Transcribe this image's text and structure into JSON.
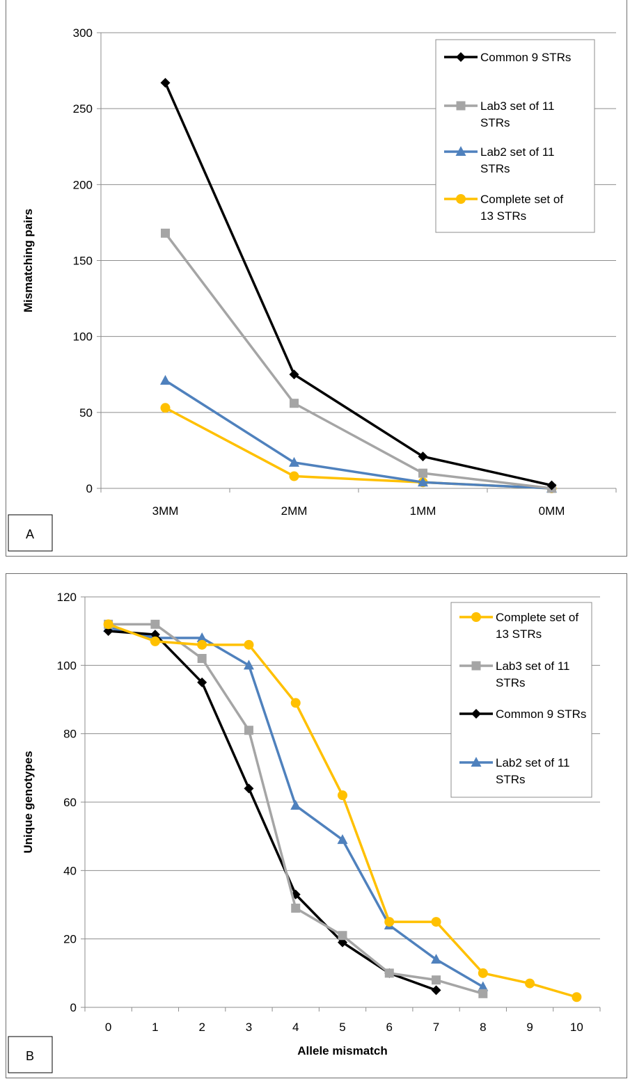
{
  "chart_data": [
    {
      "type": "line",
      "panel_label": "A",
      "title": "",
      "xlabel": "",
      "ylabel": "Mismatching pairs",
      "categories": [
        "3MM",
        "2MM",
        "1MM",
        "0MM"
      ],
      "ylim": [
        0,
        300
      ],
      "yticks": [
        0,
        50,
        100,
        150,
        200,
        250,
        300
      ],
      "grid": true,
      "legend_position": "top-right",
      "series": [
        {
          "name": "Common 9 STRs",
          "color": "#000000",
          "marker": "diamond",
          "values": [
            267,
            75,
            21,
            2
          ]
        },
        {
          "name": "Lab3 set of 11 STRs",
          "color": "#a5a5a5",
          "marker": "square",
          "values": [
            168,
            56,
            10,
            0
          ]
        },
        {
          "name": "Lab2 set of 11 STRs",
          "color": "#4f81bd",
          "marker": "triangle",
          "values": [
            71,
            17,
            4,
            0
          ]
        },
        {
          "name": "Complete set of 13 STRs",
          "color": "#ffc000",
          "marker": "circle",
          "values": [
            53,
            8,
            4,
            0
          ]
        }
      ]
    },
    {
      "type": "line",
      "panel_label": "B",
      "title": "",
      "xlabel": "Allele mismatch",
      "ylabel": "Unique genotypes",
      "categories": [
        "0",
        "1",
        "2",
        "3",
        "4",
        "5",
        "6",
        "7",
        "8",
        "9",
        "10"
      ],
      "ylim": [
        0,
        120
      ],
      "yticks": [
        0,
        20,
        40,
        60,
        80,
        100,
        120
      ],
      "grid": true,
      "legend_position": "top-right",
      "series": [
        {
          "name": "Complete set of 13 STRs",
          "color": "#ffc000",
          "marker": "circle",
          "values": [
            112,
            107,
            106,
            106,
            89,
            62,
            25,
            25,
            10,
            7,
            3
          ]
        },
        {
          "name": "Lab3 set of 11 STRs",
          "color": "#a5a5a5",
          "marker": "square",
          "values": [
            112,
            112,
            102,
            81,
            29,
            21,
            10,
            8,
            4,
            null,
            null
          ]
        },
        {
          "name": "Common 9 STRs",
          "color": "#000000",
          "marker": "diamond",
          "values": [
            110,
            109,
            95,
            64,
            33,
            19,
            10,
            5,
            null,
            null,
            null
          ]
        },
        {
          "name": "Lab2 set of 11 STRs",
          "color": "#4f81bd",
          "marker": "triangle",
          "values": [
            111,
            108,
            108,
            100,
            59,
            49,
            24,
            14,
            6,
            null,
            null
          ]
        }
      ]
    }
  ]
}
